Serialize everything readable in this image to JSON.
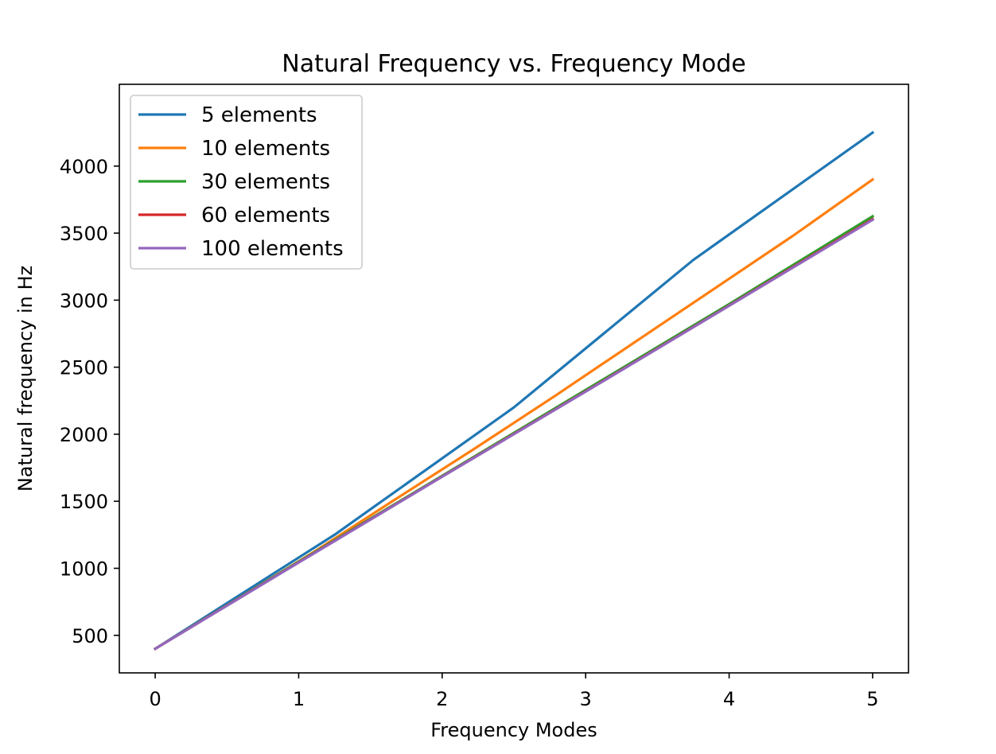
{
  "chart_data": {
    "type": "line",
    "title": "Natural Frequency vs. Frequency Mode",
    "xlabel": "Frequency Modes",
    "ylabel": "Natural frequency in Hz",
    "xlim": [
      -0.25,
      5.25
    ],
    "ylim": [
      220,
      4610
    ],
    "xticks": [
      0,
      1,
      2,
      3,
      4,
      5
    ],
    "xtick_labels": [
      "0",
      "1",
      "2",
      "3",
      "4",
      "5"
    ],
    "yticks": [
      500,
      1000,
      1500,
      2000,
      2500,
      3000,
      3500,
      4000
    ],
    "ytick_labels": [
      "500",
      "1000",
      "1500",
      "2000",
      "2500",
      "3000",
      "3500",
      "4000"
    ],
    "grid": false,
    "legend_position": "upper-left",
    "series": [
      {
        "name": "5 elements",
        "color": "#1f77b4",
        "x": [
          0,
          1.25,
          2.5,
          3.75,
          5
        ],
        "y": [
          400,
          1250,
          2200,
          3300,
          4250
        ]
      },
      {
        "name": "10 elements",
        "color": "#ff7f0e",
        "x": [
          0,
          0.5556,
          1.1111,
          1.6667,
          2.2222,
          2.7778,
          3.3333,
          3.8889,
          4.4444,
          5
        ],
        "y": [
          400,
          760,
          1125,
          1510,
          1890,
          2280,
          2680,
          3080,
          3480,
          3900
        ]
      },
      {
        "name": "30 elements",
        "color": "#2ca02c",
        "x": [
          0,
          1,
          2,
          3,
          4,
          5
        ],
        "y": [
          400,
          1050,
          1690,
          2330,
          2970,
          3625
        ]
      },
      {
        "name": "60 elements",
        "color": "#d62728",
        "x": [
          0,
          1,
          2,
          3,
          4,
          5
        ],
        "y": [
          400,
          1045,
          1685,
          2320,
          2960,
          3605
        ]
      },
      {
        "name": "100 elements",
        "color": "#9467bd",
        "x": [
          0,
          1,
          2,
          3,
          4,
          5
        ],
        "y": [
          400,
          1043,
          1683,
          2318,
          2958,
          3600
        ]
      }
    ]
  }
}
